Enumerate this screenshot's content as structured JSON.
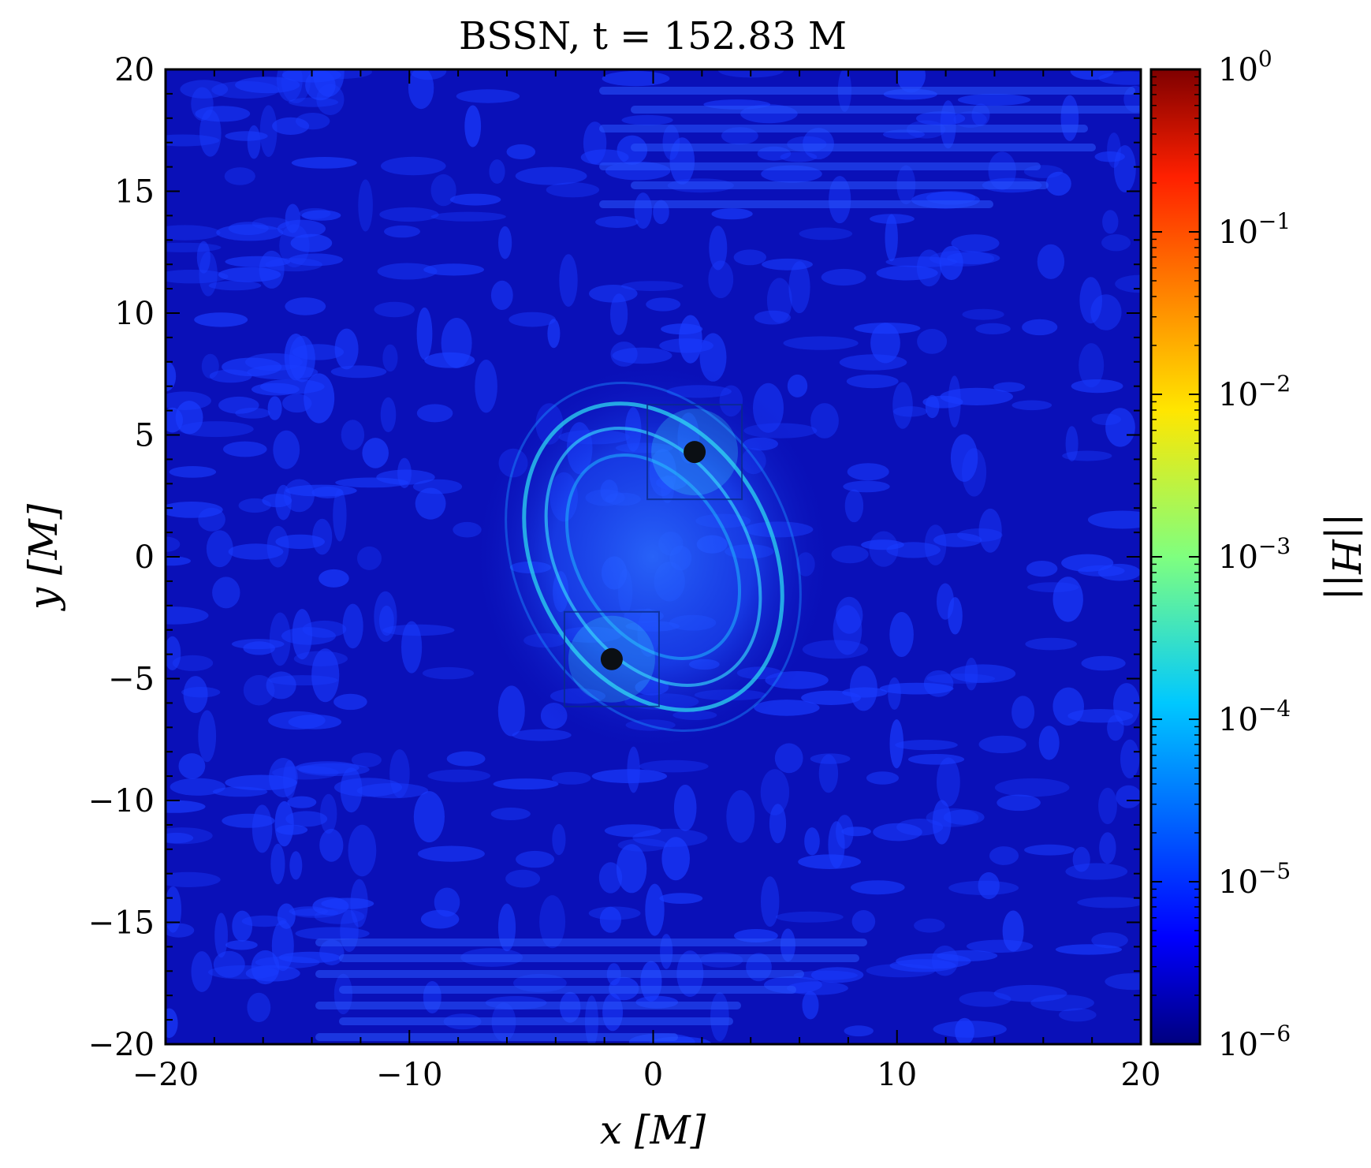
{
  "chart_data": {
    "type": "heatmap",
    "title": "BSSN, t = 152.83 M",
    "xlabel": "x [M]",
    "ylabel": "y [M]",
    "xlim": [
      -20,
      20
    ],
    "ylim": [
      -20,
      20
    ],
    "x_ticks": [
      -20,
      -10,
      0,
      10,
      20
    ],
    "y_ticks": [
      -20,
      -15,
      -10,
      -5,
      0,
      5,
      10,
      15,
      20
    ],
    "x_tick_labels": [
      "−20",
      "−10",
      "0",
      "10",
      "20"
    ],
    "y_tick_labels": [
      "−20",
      "−15",
      "−10",
      "−5",
      "0",
      "5",
      "10",
      "15",
      "20"
    ],
    "colorbar": {
      "label": "||H||",
      "scale": "log",
      "range": [
        1e-06,
        1
      ],
      "ticks": [
        {
          "value": 1e-06,
          "base": "10",
          "exp": "−6"
        },
        {
          "value": 1e-05,
          "base": "10",
          "exp": "−5"
        },
        {
          "value": 0.0001,
          "base": "10",
          "exp": "−4"
        },
        {
          "value": 0.001,
          "base": "10",
          "exp": "−3"
        },
        {
          "value": 0.01,
          "base": "10",
          "exp": "−2"
        },
        {
          "value": 0.1,
          "base": "10",
          "exp": "−1"
        },
        {
          "value": 1,
          "base": "10",
          "exp": "0"
        }
      ],
      "colormap": "jet"
    },
    "punctures": [
      {
        "x": 1.7,
        "y": 4.3
      },
      {
        "x": -1.7,
        "y": -4.2
      }
    ],
    "colors": {
      "background": "#0a10b8",
      "ripple": "#1a3cff",
      "bright_core": "#30d8f0",
      "puncture": "#0b0f14"
    }
  }
}
